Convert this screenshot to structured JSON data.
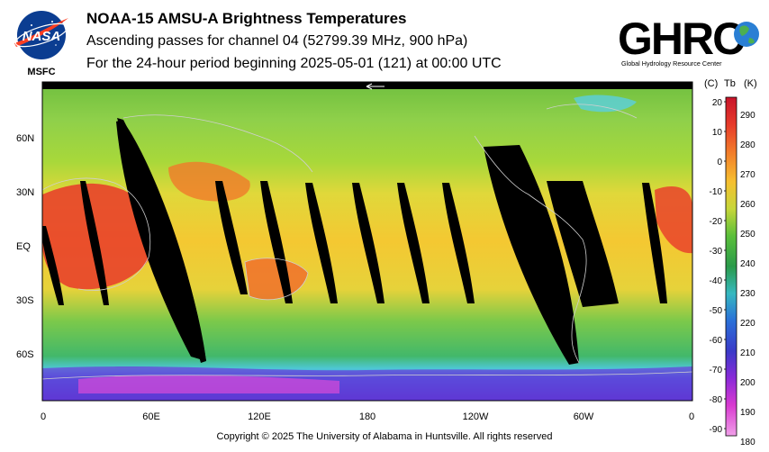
{
  "header": {
    "title": "NOAA-15 AMSU-A Brightness Temperatures",
    "subtitle1": "Ascending passes for channel 04 (52799.39 MHz, 900 hPa)",
    "subtitle2": "For the 24-hour period beginning 2025-05-01 (121) at 00:00 UTC"
  },
  "logos": {
    "nasa": {
      "text": "NASA",
      "label": "MSFC"
    },
    "ghrc": {
      "text": "GHRC",
      "label": "Global Hydrology Resource Center"
    }
  },
  "map": {
    "lat_labels": [
      "60N",
      "30N",
      "EQ",
      "30S",
      "60S"
    ],
    "lon_labels": [
      "0",
      "60E",
      "120E",
      "180",
      "120W",
      "60W",
      "0"
    ],
    "colors": {
      "polar_cold": "#8a2be2",
      "mid_cold": "#4169e1",
      "temperate": "#6dbb3a",
      "warm": "#f2d23a",
      "hot": "#e63a2a",
      "no_data": "#000000"
    }
  },
  "colorbar": {
    "header_c": "(C)",
    "header_tb": "Tb",
    "header_k": "(K)",
    "celsius_ticks": [
      "20",
      "10",
      "0",
      "-10",
      "-20",
      "-30",
      "-40",
      "-50",
      "-60",
      "-70",
      "-80",
      "-90"
    ],
    "kelvin_ticks": [
      "290",
      "280",
      "270",
      "260",
      "250",
      "240",
      "230",
      "220",
      "210",
      "200",
      "190",
      "180"
    ]
  },
  "footer": {
    "copyright": "Copyright © 2025 The University of Alabama in Huntsville.  All rights reserved"
  }
}
